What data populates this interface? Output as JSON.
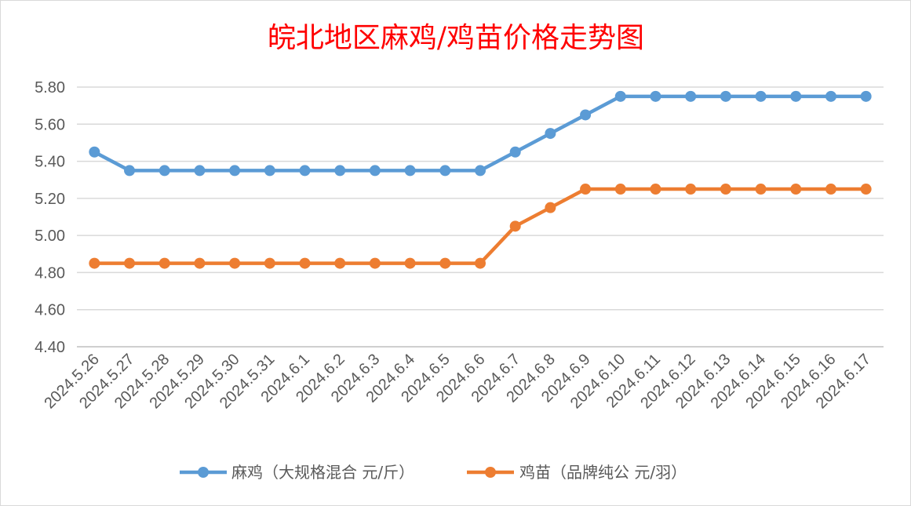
{
  "chart_data": {
    "type": "line",
    "title": "皖北地区麻鸡/鸡苗价格走势图",
    "categories": [
      "2024.5.26",
      "2024.5.27",
      "2024.5.28",
      "2024.5.29",
      "2024.5.30",
      "2024.5.31",
      "2024.6.1",
      "2024.6.2",
      "2024.6.3",
      "2024.6.4",
      "2024.6.5",
      "2024.6.6",
      "2024.6.7",
      "2024.6.8",
      "2024.6.9",
      "2024.6.10",
      "2024.6.11",
      "2024.6.12",
      "2024.6.13",
      "2024.6.14",
      "2024.6.15",
      "2024.6.16",
      "2024.6.17"
    ],
    "series": [
      {
        "name": "麻鸡（大规格混合 元/斤）",
        "color": "#5b9bd5",
        "values": [
          5.45,
          5.35,
          5.35,
          5.35,
          5.35,
          5.35,
          5.35,
          5.35,
          5.35,
          5.35,
          5.35,
          5.35,
          5.45,
          5.55,
          5.65,
          5.75,
          5.75,
          5.75,
          5.75,
          5.75,
          5.75,
          5.75,
          5.75
        ]
      },
      {
        "name": "鸡苗（品牌纯公 元/羽）",
        "color": "#ed7d31",
        "values": [
          4.85,
          4.85,
          4.85,
          4.85,
          4.85,
          4.85,
          4.85,
          4.85,
          4.85,
          4.85,
          4.85,
          4.85,
          5.05,
          5.15,
          5.25,
          5.25,
          5.25,
          5.25,
          5.25,
          5.25,
          5.25,
          5.25,
          5.25
        ]
      }
    ],
    "ylim": [
      4.4,
      5.8
    ],
    "yticks": [
      "4.40",
      "4.60",
      "4.80",
      "5.00",
      "5.20",
      "5.40",
      "5.60",
      "5.80"
    ],
    "grid": true,
    "legend": "bottom"
  }
}
